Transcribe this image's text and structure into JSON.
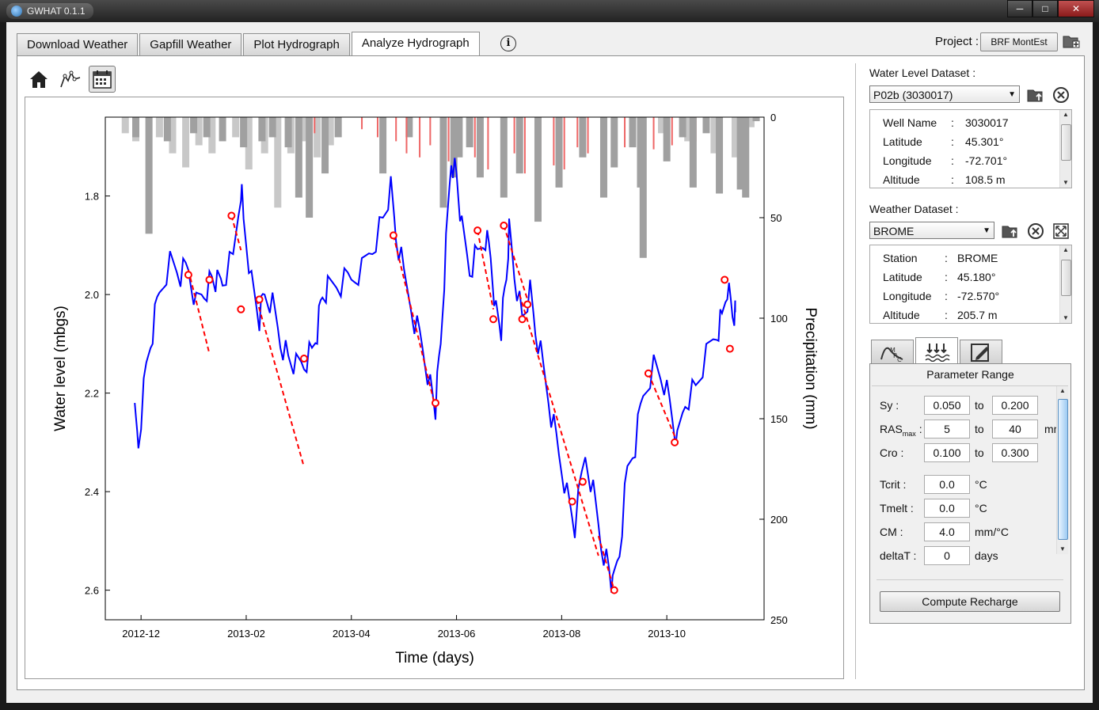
{
  "window": {
    "title": "GWHAT 0.1.1",
    "minimize": "─",
    "maximize": "□",
    "close": "✕"
  },
  "tabs": [
    {
      "label": "Download Weather"
    },
    {
      "label": "Gapfill Weather"
    },
    {
      "label": "Plot Hydrograph"
    },
    {
      "label": "Analyze Hydrograph"
    }
  ],
  "active_tab": "Analyze Hydrograph",
  "info_glyph": "i",
  "project": {
    "label": "Project :",
    "value": "BRF MontEst"
  },
  "toolbar": {
    "icons": [
      "home-icon",
      "mrc-curve-icon",
      "calendar-icon"
    ]
  },
  "water_level": {
    "label": "Water Level Dataset :",
    "selected": "P02b (3030017)",
    "info": [
      {
        "key": "Well Name",
        "sep": ":",
        "value": "3030017"
      },
      {
        "key": "Latitude",
        "sep": ":",
        "value": "45.301°"
      },
      {
        "key": "Longitude",
        "sep": ":",
        "value": "-72.701°"
      },
      {
        "key": "Altitude",
        "sep": ":",
        "value": "108.5 m"
      }
    ]
  },
  "weather": {
    "label": "Weather Dataset :",
    "selected": "BROME",
    "info": [
      {
        "key": "Station",
        "sep": ":",
        "value": "BROME"
      },
      {
        "key": "Latitude",
        "sep": ":",
        "value": "45.180°"
      },
      {
        "key": "Longitude",
        "sep": ":",
        "value": "-72.570°"
      },
      {
        "key": "Altitude",
        "sep": ":",
        "value": "205.7 m"
      }
    ]
  },
  "params": {
    "title": "Parameter Range",
    "sy": {
      "label": "Sy :",
      "min": "0.050",
      "to": "to",
      "max": "0.200"
    },
    "rasmax": {
      "label": "RAS",
      "sub": "max",
      "colon": " :",
      "min": "5",
      "to": "to",
      "max": "40",
      "unit": "mm"
    },
    "cro": {
      "label": "Cro :",
      "min": "0.100",
      "to": "to",
      "max": "0.300"
    },
    "tcrit": {
      "label": "Tcrit :",
      "value": "0.0",
      "unit": "°C"
    },
    "tmelt": {
      "label": "Tmelt :",
      "value": "0.0",
      "unit": "°C"
    },
    "cm": {
      "label": "CM :",
      "value": "4.0",
      "unit": "mm/°C"
    },
    "deltat": {
      "label": "deltaT :",
      "value": "0",
      "unit": "days"
    },
    "compute_label": "Compute Recharge"
  },
  "chart_data": {
    "type": "line",
    "title": "",
    "xlabel": "Time (days)",
    "ylabel": "Water level (mbgs)",
    "y2label": "Precipitation (mm)",
    "x_ticks": [
      "2012-12",
      "2013-02",
      "2013-04",
      "2013-06",
      "2013-08",
      "2013-10"
    ],
    "x_tick_months": [
      0,
      2,
      4,
      6,
      8,
      10
    ],
    "xlim_months": [
      -0.68,
      11.85
    ],
    "ylim": [
      2.66,
      1.64
    ],
    "y_ticks": [
      "1.8",
      "2.0",
      "2.2",
      "2.4",
      "2.6"
    ],
    "y2lim": [
      0,
      250
    ],
    "y2_ticks": [
      "0",
      "50",
      "100",
      "150",
      "200",
      "250"
    ],
    "grid": false,
    "colors": {
      "water_level": "#0000ff",
      "mrc": "#ff0000",
      "rain": "#ee6666",
      "snow": "#c8c8c8",
      "snowmelt": "#a0a0a0"
    },
    "water_level_series": {
      "name": "Water level",
      "points": [
        [
          -0.12,
          2.25
        ],
        [
          -0.05,
          2.3
        ],
        [
          0.1,
          2.15
        ],
        [
          0.22,
          2.07
        ],
        [
          0.35,
          1.99
        ],
        [
          0.55,
          1.93
        ],
        [
          0.75,
          1.96
        ],
        [
          0.9,
          1.95
        ],
        [
          1.05,
          2.02
        ],
        [
          1.2,
          1.99
        ],
        [
          1.35,
          1.97
        ],
        [
          1.45,
          1.98
        ],
        [
          1.55,
          1.97
        ],
        [
          1.75,
          1.93
        ],
        [
          1.9,
          1.78
        ],
        [
          1.95,
          1.84
        ],
        [
          2.1,
          1.97
        ],
        [
          2.25,
          2.05
        ],
        [
          2.35,
          2.0
        ],
        [
          2.5,
          2.02
        ],
        [
          2.65,
          2.09
        ],
        [
          2.8,
          2.13
        ],
        [
          2.95,
          2.15
        ],
        [
          3.1,
          2.14
        ],
        [
          3.25,
          2.12
        ],
        [
          3.35,
          2.07
        ],
        [
          3.45,
          2.0
        ],
        [
          3.55,
          1.98
        ],
        [
          3.8,
          1.98
        ],
        [
          4.0,
          1.97
        ],
        [
          4.2,
          1.95
        ],
        [
          4.4,
          1.9
        ],
        [
          4.6,
          1.85
        ],
        [
          4.75,
          1.79
        ],
        [
          4.85,
          1.88
        ],
        [
          5.0,
          1.96
        ],
        [
          5.2,
          2.05
        ],
        [
          5.35,
          2.1
        ],
        [
          5.5,
          2.18
        ],
        [
          5.6,
          2.23
        ],
        [
          5.7,
          2.1
        ],
        [
          5.8,
          1.9
        ],
        [
          5.9,
          1.72
        ],
        [
          6.0,
          1.76
        ],
        [
          6.1,
          1.87
        ],
        [
          6.25,
          1.95
        ],
        [
          6.4,
          1.92
        ],
        [
          6.55,
          1.88
        ],
        [
          6.65,
          1.92
        ],
        [
          6.75,
          2.03
        ],
        [
          6.85,
          2.07
        ],
        [
          6.95,
          1.97
        ],
        [
          7.0,
          1.87
        ],
        [
          7.1,
          1.95
        ],
        [
          7.25,
          2.05
        ],
        [
          7.4,
          2.0
        ],
        [
          7.5,
          2.07
        ],
        [
          7.65,
          2.15
        ],
        [
          7.8,
          2.24
        ],
        [
          7.95,
          2.32
        ],
        [
          8.1,
          2.4
        ],
        [
          8.25,
          2.47
        ],
        [
          8.45,
          2.33
        ],
        [
          8.6,
          2.4
        ],
        [
          8.75,
          2.5
        ],
        [
          8.9,
          2.56
        ],
        [
          8.97,
          2.6
        ],
        [
          9.1,
          2.52
        ],
        [
          9.25,
          2.36
        ],
        [
          9.4,
          2.3
        ],
        [
          9.55,
          2.2
        ],
        [
          9.75,
          2.14
        ],
        [
          9.95,
          2.18
        ],
        [
          10.1,
          2.25
        ],
        [
          10.2,
          2.3
        ],
        [
          10.35,
          2.21
        ],
        [
          10.55,
          2.19
        ],
        [
          10.75,
          2.13
        ],
        [
          10.95,
          2.08
        ],
        [
          11.05,
          2.05
        ],
        [
          11.15,
          1.98
        ],
        [
          11.25,
          2.04
        ],
        [
          11.3,
          2.03
        ]
      ]
    },
    "mrc_segments": [
      [
        [
          0.9,
          1.95
        ],
        [
          1.3,
          2.12
        ]
      ],
      [
        [
          1.72,
          1.84
        ],
        [
          1.9,
          1.91
        ]
      ],
      [
        [
          2.2,
          2.01
        ],
        [
          3.1,
          2.35
        ]
      ],
      [
        [
          4.8,
          1.88
        ],
        [
          5.6,
          2.23
        ]
      ],
      [
        [
          6.4,
          1.87
        ],
        [
          6.7,
          2.03
        ]
      ],
      [
        [
          6.9,
          1.86
        ],
        [
          7.35,
          2.01
        ]
      ],
      [
        [
          7.2,
          2.0
        ],
        [
          8.7,
          2.53
        ]
      ],
      [
        [
          8.7,
          2.49
        ],
        [
          9.0,
          2.6
        ]
      ],
      [
        [
          9.65,
          2.16
        ],
        [
          10.2,
          2.3
        ]
      ]
    ],
    "markers": [
      [
        0.9,
        1.96
      ],
      [
        1.3,
        1.97
      ],
      [
        1.72,
        1.84
      ],
      [
        1.9,
        2.03
      ],
      [
        2.25,
        2.01
      ],
      [
        3.1,
        2.13
      ],
      [
        4.8,
        1.88
      ],
      [
        5.6,
        2.22
      ],
      [
        6.4,
        1.87
      ],
      [
        6.7,
        2.05
      ],
      [
        6.9,
        1.86
      ],
      [
        7.25,
        2.05
      ],
      [
        7.35,
        2.02
      ],
      [
        8.2,
        2.42
      ],
      [
        8.4,
        2.38
      ],
      [
        9.0,
        2.6
      ],
      [
        9.65,
        2.16
      ],
      [
        10.15,
        2.3
      ],
      [
        11.1,
        1.97
      ],
      [
        11.2,
        2.11
      ]
    ],
    "precip_series": [
      {
        "name": "snow",
        "bars": [
          [
            -0.3,
            8
          ],
          [
            -0.1,
            12
          ],
          [
            0.35,
            10
          ],
          [
            0.6,
            18
          ],
          [
            0.85,
            25
          ],
          [
            1.1,
            14
          ],
          [
            1.35,
            18
          ],
          [
            1.8,
            10
          ],
          [
            2.05,
            26
          ],
          [
            2.35,
            18
          ],
          [
            2.6,
            45
          ],
          [
            2.85,
            18
          ],
          [
            3.1,
            12
          ],
          [
            3.35,
            20
          ],
          [
            3.6,
            14
          ],
          [
            9.9,
            8
          ],
          [
            10.4,
            12
          ],
          [
            10.9,
            18
          ],
          [
            11.3,
            20
          ],
          [
            11.6,
            5
          ]
        ]
      },
      {
        "name": "snowmelt",
        "bars": [
          [
            -0.1,
            10
          ],
          [
            0.15,
            58
          ],
          [
            0.5,
            12
          ],
          [
            1.0,
            8
          ],
          [
            1.25,
            10
          ],
          [
            1.55,
            12
          ],
          [
            1.95,
            15
          ],
          [
            2.3,
            12
          ],
          [
            2.5,
            10
          ],
          [
            2.8,
            15
          ],
          [
            3.0,
            40
          ],
          [
            3.2,
            50
          ],
          [
            3.5,
            28
          ],
          [
            3.75,
            10
          ],
          [
            5.1,
            10
          ],
          [
            5.95,
            30
          ],
          [
            6.25,
            15
          ],
          [
            9.55,
            70
          ],
          [
            10.3,
            10
          ],
          [
            10.75,
            8
          ],
          [
            11.0,
            38
          ],
          [
            11.4,
            36
          ],
          [
            11.5,
            40
          ],
          [
            11.7,
            2
          ]
        ]
      },
      {
        "name": "rain",
        "bars": [
          [
            3.3,
            8
          ],
          [
            4.2,
            6
          ],
          [
            4.5,
            10
          ],
          [
            4.85,
            12
          ],
          [
            5.05,
            18
          ],
          [
            5.3,
            20
          ],
          [
            5.5,
            14
          ],
          [
            5.85,
            22
          ],
          [
            6.35,
            20
          ],
          [
            6.6,
            26
          ],
          [
            6.85,
            24
          ],
          [
            7.1,
            18
          ],
          [
            7.3,
            28
          ],
          [
            7.6,
            20
          ],
          [
            7.85,
            24
          ],
          [
            8.05,
            26
          ],
          [
            8.3,
            15
          ],
          [
            8.5,
            18
          ],
          [
            8.75,
            22
          ],
          [
            9.0,
            20
          ],
          [
            9.2,
            15
          ],
          [
            9.45,
            25
          ],
          [
            9.75,
            16
          ],
          [
            10.1,
            14
          ],
          [
            10.55,
            12
          ]
        ]
      },
      {
        "name": "precip-big",
        "bars": [
          [
            4.6,
            28
          ],
          [
            5.75,
            45
          ],
          [
            6.05,
            20
          ],
          [
            6.45,
            30
          ],
          [
            6.9,
            40
          ],
          [
            7.2,
            28
          ],
          [
            7.55,
            52
          ],
          [
            7.95,
            35
          ],
          [
            8.4,
            20
          ],
          [
            8.8,
            40
          ],
          [
            9.0,
            25
          ],
          [
            9.35,
            15
          ],
          [
            9.5,
            35
          ],
          [
            10.0,
            22
          ],
          [
            10.5,
            35
          ]
        ]
      }
    ]
  }
}
